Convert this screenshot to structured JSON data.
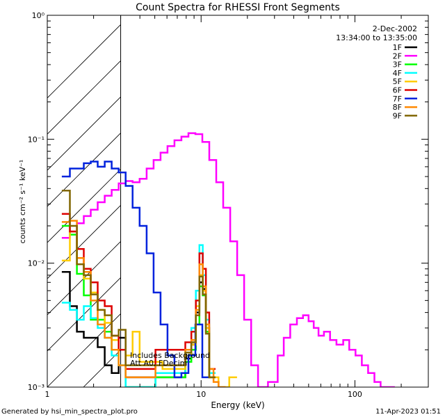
{
  "chart_data": {
    "type": "line",
    "title": "Count Spectra for RHESSI Front Segments",
    "xlabel": "Energy (keV)",
    "ylabel": "counts cm⁻² s⁻¹ keV⁻¹",
    "x_scale": "log",
    "y_scale": "log",
    "xlim": [
      1,
      300
    ],
    "ylim": [
      0.001,
      1
    ],
    "x_ticks": [
      {
        "value": 1,
        "label": "1"
      },
      {
        "value": 10,
        "label": "10"
      },
      {
        "value": 100,
        "label": "100"
      }
    ],
    "y_ticks": [
      {
        "value": 1,
        "label": "10⁰"
      },
      {
        "value": 0.1,
        "label": "10⁻¹"
      },
      {
        "value": 0.01,
        "label": "10⁻²"
      },
      {
        "value": 0.001,
        "label": "10⁻³"
      }
    ],
    "date": "2-Dec-2002",
    "time_range": "13:34:00 to 13:35:00",
    "shaded_region_keV": [
      1,
      3
    ],
    "annotations": [
      "Includes Background",
      "Att A0, FDecim"
    ],
    "legend_position": "top-right",
    "series": [
      {
        "name": "1F",
        "color": "#000000",
        "x": [
          1.33,
          1.48,
          1.64,
          1.82,
          2.02,
          2.24,
          2.49,
          2.76,
          3.07,
          3.4,
          7.5,
          8.3,
          9.0,
          9.5,
          10.0,
          10.5,
          11.0,
          11.6
        ],
        "y": [
          0.0085,
          0.0045,
          0.0028,
          0.0025,
          0.0025,
          0.0021,
          0.0015,
          0.0013,
          0.0025,
          0.0012,
          0.0012,
          0.0017,
          0.0022,
          0.004,
          0.007,
          0.0062,
          0.003,
          0.0012
        ]
      },
      {
        "name": "2F",
        "color": "#ff00ff",
        "x": [
          1.33,
          1.48,
          1.64,
          1.82,
          2.02,
          2.24,
          2.49,
          2.76,
          3.07,
          3.4,
          3.78,
          4.2,
          4.66,
          5.17,
          5.74,
          6.37,
          7.07,
          7.85,
          8.71,
          9.67,
          10.73,
          11.91,
          13.22,
          14.67,
          16.29,
          18.08,
          20.07,
          22.27,
          24.7,
          30,
          33,
          36,
          40,
          44,
          48,
          52,
          56,
          60,
          66,
          72,
          80,
          88,
          96,
          106,
          116,
          128,
          140,
          154,
          170
        ],
        "y": [
          0.016,
          0.018,
          0.021,
          0.024,
          0.027,
          0.031,
          0.035,
          0.039,
          0.044,
          0.046,
          0.045,
          0.048,
          0.058,
          0.068,
          0.078,
          0.088,
          0.098,
          0.105,
          0.112,
          0.11,
          0.095,
          0.068,
          0.045,
          0.028,
          0.015,
          0.008,
          0.0035,
          0.0015,
          0.001,
          0.0011,
          0.0018,
          0.0025,
          0.0032,
          0.0036,
          0.0038,
          0.0034,
          0.003,
          0.0026,
          0.0028,
          0.0024,
          0.0022,
          0.0024,
          0.002,
          0.0018,
          0.0015,
          0.0013,
          0.0011,
          0.001,
          0.001
        ]
      },
      {
        "name": "3F",
        "color": "#00ff00",
        "x": [
          1.33,
          1.48,
          1.64,
          1.82,
          2.02,
          2.24,
          2.49,
          2.76,
          3.07,
          3.4,
          7.5,
          8.3,
          9.0,
          9.5,
          10.0,
          10.5,
          11.0,
          11.6
        ],
        "y": [
          0.02,
          0.017,
          0.0082,
          0.0055,
          0.0035,
          0.0035,
          0.0028,
          0.002,
          0.0015,
          0.001,
          0.0012,
          0.0016,
          0.002,
          0.0032,
          0.0065,
          0.0055,
          0.0028,
          0.0012
        ]
      },
      {
        "name": "4F",
        "color": "#00ffff",
        "x": [
          1.33,
          1.48,
          1.64,
          1.82,
          2.02,
          2.24,
          2.49,
          2.76,
          3.07,
          3.4,
          7.5,
          8.3,
          9.0,
          9.5,
          10.0,
          10.5,
          11.0,
          11.6
        ],
        "y": [
          0.0048,
          0.0042,
          0.0035,
          0.0045,
          0.0036,
          0.003,
          0.0025,
          0.0018,
          0.0015,
          0.001,
          0.0013,
          0.0018,
          0.003,
          0.006,
          0.014,
          0.008,
          0.0035,
          0.0013
        ]
      },
      {
        "name": "5F",
        "color": "#ffcc00",
        "x": [
          1.33,
          1.48,
          1.64,
          1.82,
          2.02,
          2.24,
          2.49,
          2.76,
          3.07,
          3.4,
          3.78,
          4.2,
          7.5,
          8.3,
          9.0,
          9.5,
          10.0,
          10.5,
          11.0,
          11.6,
          14.5,
          16.0
        ],
        "y": [
          0.0105,
          0.018,
          0.0098,
          0.0075,
          0.0058,
          0.0042,
          0.0033,
          0.0024,
          0.002,
          0.0018,
          0.0028,
          0.0016,
          0.0014,
          0.0018,
          0.0022,
          0.0045,
          0.008,
          0.006,
          0.003,
          0.0012,
          0.001,
          0.0012
        ]
      },
      {
        "name": "6F",
        "color": "#dd0000",
        "x": [
          1.33,
          1.48,
          1.64,
          1.82,
          2.02,
          2.24,
          2.49,
          2.76,
          3.07,
          3.4,
          7.5,
          8.3,
          9.0,
          9.5,
          10.0,
          10.5,
          11.0,
          11.6
        ],
        "y": [
          0.025,
          0.018,
          0.013,
          0.009,
          0.007,
          0.005,
          0.0045,
          0.0026,
          0.002,
          0.0014,
          0.002,
          0.0023,
          0.0028,
          0.005,
          0.012,
          0.009,
          0.004,
          0.0014
        ]
      },
      {
        "name": "7F",
        "color": "#0022dd",
        "x": [
          1.33,
          1.48,
          1.64,
          1.82,
          2.02,
          2.24,
          2.49,
          2.76,
          3.07,
          3.4,
          3.78,
          4.2,
          4.66,
          5.17,
          5.74,
          6.37,
          7.07,
          7.85,
          8.71,
          9.67,
          10.73
        ],
        "y": [
          0.05,
          0.058,
          0.058,
          0.064,
          0.066,
          0.06,
          0.066,
          0.058,
          0.054,
          0.042,
          0.028,
          0.02,
          0.012,
          0.0058,
          0.0032,
          0.0018,
          0.0012,
          0.0013,
          0.0018,
          0.0032,
          0.0012
        ]
      },
      {
        "name": "8F",
        "color": "#ff8800",
        "x": [
          1.33,
          1.48,
          1.64,
          1.82,
          2.02,
          2.24,
          2.49,
          2.76,
          3.07,
          3.4,
          7.5,
          8.3,
          9.0,
          9.5,
          10.0,
          10.5,
          11.0,
          11.6,
          12.5,
          13.5
        ],
        "y": [
          0.0215,
          0.022,
          0.011,
          0.0085,
          0.005,
          0.0032,
          0.0025,
          0.002,
          0.0015,
          0.0012,
          0.0015,
          0.002,
          0.0024,
          0.0042,
          0.0098,
          0.0065,
          0.0032,
          0.0014,
          0.0011,
          0.001
        ]
      },
      {
        "name": "9F",
        "color": "#806600",
        "x": [
          1.33,
          1.48,
          1.64,
          1.82,
          2.02,
          2.24,
          2.49,
          2.76,
          3.07,
          3.4,
          7.5,
          8.3,
          9.0,
          9.5,
          10.0,
          10.5,
          11.0,
          11.6
        ],
        "y": [
          0.0385,
          0.02,
          0.0098,
          0.008,
          0.0056,
          0.0042,
          0.0038,
          0.0026,
          0.0029,
          0.0015,
          0.0015,
          0.0019,
          0.0023,
          0.0038,
          0.0078,
          0.0056,
          0.0027,
          0.0012
        ]
      }
    ]
  },
  "footer": {
    "left": "Generated by hsi_min_spectra_plot.pro",
    "right": "11-Apr-2023 01:51"
  }
}
